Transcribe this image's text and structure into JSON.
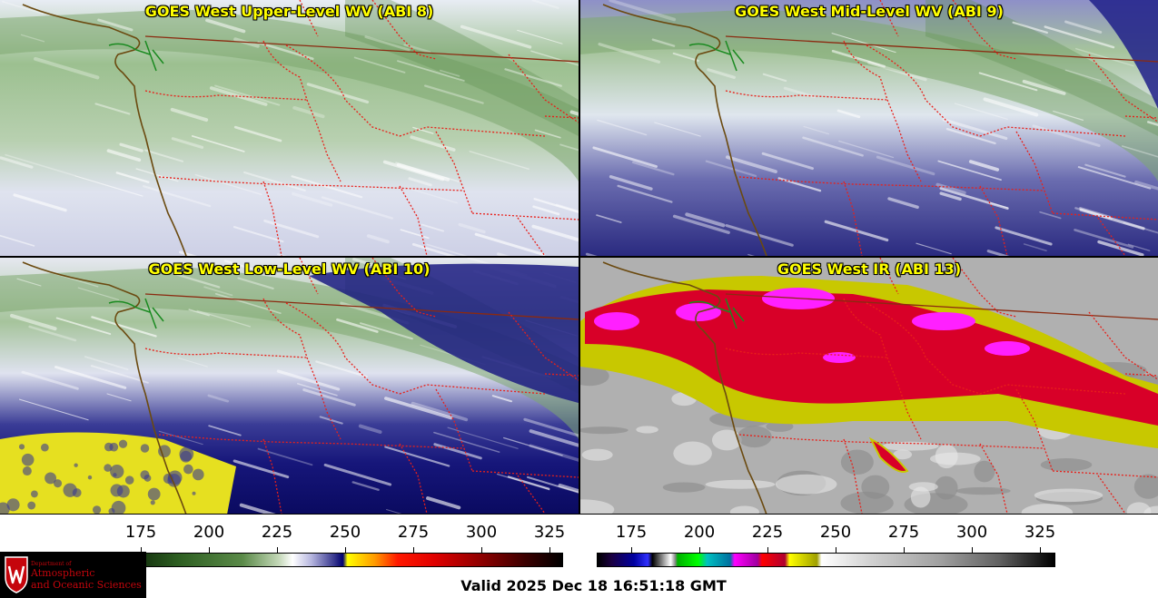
{
  "panels": [
    {
      "title": "GOES West Upper-Level WV (ABI 8)",
      "palette": "wv-upper"
    },
    {
      "title": "GOES West Mid-Level WV (ABI 9)",
      "palette": "wv-mid"
    },
    {
      "title": "GOES West Low-Level WV (ABI 10)",
      "palette": "wv-low"
    },
    {
      "title": "GOES West IR (ABI 13)",
      "palette": "ir"
    }
  ],
  "colorbars": [
    {
      "name": "water-vapor-colorbar",
      "ticks": [
        "175",
        "200",
        "225",
        "250",
        "275",
        "300",
        "325"
      ],
      "range": [
        163,
        330
      ]
    },
    {
      "name": "infrared-colorbar",
      "ticks": [
        "175",
        "200",
        "225",
        "250",
        "275",
        "300",
        "325"
      ],
      "range": [
        163,
        330
      ]
    }
  ],
  "colors": {
    "title_text": "#ffff00",
    "state_borders": "#e8201a",
    "coastline": "#6b4a10",
    "intl_border": "#8b2a10"
  },
  "valid_time": "Valid 2025 Dec 18 16:51:18 GMT",
  "logo": {
    "dept_line": "Department of",
    "line1": "Atmospheric",
    "line2": "and Oceanic Sciences",
    "shield_letter": "W"
  }
}
